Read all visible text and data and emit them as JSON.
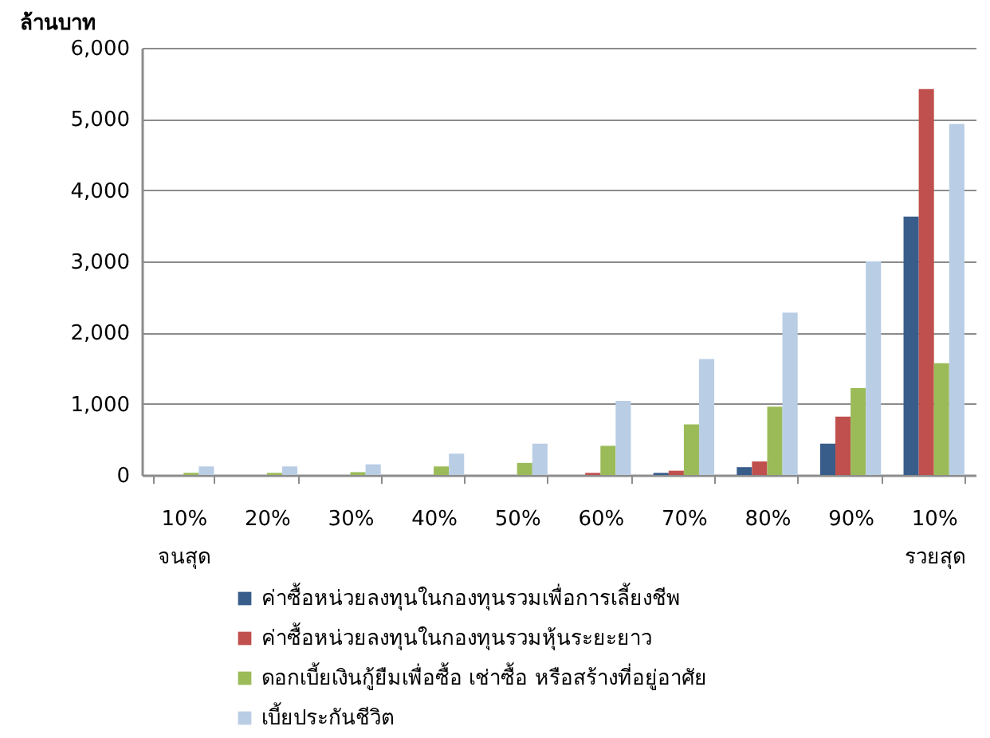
{
  "chart_data": {
    "type": "bar",
    "ylabel": "ล้านบาท",
    "categories": [
      "10%\nจนสุด",
      "20%",
      "30%",
      "40%",
      "50%",
      "60%",
      "70%",
      "80%",
      "90%",
      "10%\nรวยสุด"
    ],
    "series": [
      {
        "name": "ค่าซื้อหน่วยลงทุนในกองทุนรวมเพื่อการเลี้ยงชีพ",
        "color": "#385d8a",
        "values": [
          0,
          0,
          0,
          0,
          0,
          0,
          30,
          110,
          440,
          3630
        ]
      },
      {
        "name": "ค่าซื้อหน่วยลงทุนในกองทุนรวมหุ้นระยะยาว",
        "color": "#c0504d",
        "values": [
          0,
          0,
          0,
          0,
          0,
          30,
          60,
          190,
          820,
          5420
        ]
      },
      {
        "name": "ดอกเบี้ยเงินกู้ยืมเพื่อซื้อ เช่าซื้อ หรือสร้างที่อยู่อาศัย",
        "color": "#9bbb59",
        "values": [
          30,
          30,
          40,
          120,
          170,
          410,
          710,
          960,
          1220,
          1570
        ]
      },
      {
        "name": "เบี้ยประกันชีวิต",
        "color": "#b9cde5",
        "values": [
          120,
          120,
          150,
          300,
          440,
          1040,
          1630,
          2280,
          3000,
          4930
        ]
      }
    ],
    "ylim": [
      0,
      6000
    ],
    "yticks": [
      0,
      {
        "value": 1000,
        "label": "1,000"
      },
      {
        "value": 2000,
        "label": "2,000"
      },
      {
        "value": 3000,
        "label": "3,000"
      },
      {
        "value": 4000,
        "label": "4,000"
      },
      {
        "value": 5000,
        "label": "5,000"
      },
      {
        "value": 6000,
        "label": "6,000"
      }
    ],
    "grid": "y",
    "legend": "bottom"
  }
}
